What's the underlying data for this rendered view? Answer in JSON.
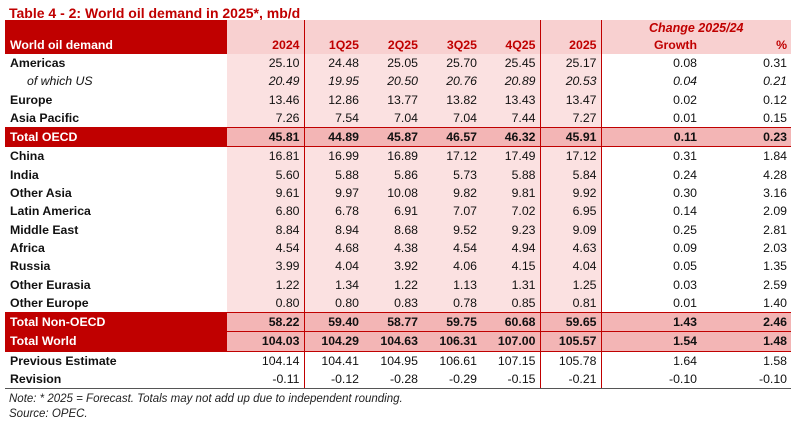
{
  "title": "Table 4 - 2: World oil demand in 2025*, mb/d",
  "header": {
    "change_label": "Change 2025/24",
    "row_label": "World oil demand",
    "columns": [
      "2024",
      "1Q25",
      "2Q25",
      "3Q25",
      "4Q25",
      "2025",
      "Growth",
      "%"
    ]
  },
  "rows": [
    {
      "label": "Americas",
      "values": [
        "25.10",
        "24.48",
        "25.05",
        "25.70",
        "25.45",
        "25.17",
        "0.08",
        "0.31"
      ],
      "style": "normal"
    },
    {
      "label": "of which US",
      "values": [
        "20.49",
        "19.95",
        "20.50",
        "20.76",
        "20.89",
        "20.53",
        "0.04",
        "0.21"
      ],
      "style": "sub"
    },
    {
      "label": "Europe",
      "values": [
        "13.46",
        "12.86",
        "13.77",
        "13.82",
        "13.43",
        "13.47",
        "0.02",
        "0.12"
      ],
      "style": "normal"
    },
    {
      "label": "Asia Pacific",
      "values": [
        "7.26",
        "7.54",
        "7.04",
        "7.04",
        "7.44",
        "7.27",
        "0.01",
        "0.15"
      ],
      "style": "normal"
    },
    {
      "label": "Total OECD",
      "values": [
        "45.81",
        "44.89",
        "45.87",
        "46.57",
        "46.32",
        "45.91",
        "0.11",
        "0.23"
      ],
      "style": "total"
    },
    {
      "label": "China",
      "values": [
        "16.81",
        "16.99",
        "16.89",
        "17.12",
        "17.49",
        "17.12",
        "0.31",
        "1.84"
      ],
      "style": "normal"
    },
    {
      "label": "India",
      "values": [
        "5.60",
        "5.88",
        "5.86",
        "5.73",
        "5.88",
        "5.84",
        "0.24",
        "4.28"
      ],
      "style": "normal"
    },
    {
      "label": "Other Asia",
      "values": [
        "9.61",
        "9.97",
        "10.08",
        "9.82",
        "9.81",
        "9.92",
        "0.30",
        "3.16"
      ],
      "style": "normal"
    },
    {
      "label": "Latin America",
      "values": [
        "6.80",
        "6.78",
        "6.91",
        "7.07",
        "7.02",
        "6.95",
        "0.14",
        "2.09"
      ],
      "style": "normal"
    },
    {
      "label": "Middle East",
      "values": [
        "8.84",
        "8.94",
        "8.68",
        "9.52",
        "9.23",
        "9.09",
        "0.25",
        "2.81"
      ],
      "style": "normal"
    },
    {
      "label": "Africa",
      "values": [
        "4.54",
        "4.68",
        "4.38",
        "4.54",
        "4.94",
        "4.63",
        "0.09",
        "2.03"
      ],
      "style": "normal"
    },
    {
      "label": "Russia",
      "values": [
        "3.99",
        "4.04",
        "3.92",
        "4.06",
        "4.15",
        "4.04",
        "0.05",
        "1.35"
      ],
      "style": "normal"
    },
    {
      "label": "Other Eurasia",
      "values": [
        "1.22",
        "1.34",
        "1.22",
        "1.13",
        "1.31",
        "1.25",
        "0.03",
        "2.59"
      ],
      "style": "normal"
    },
    {
      "label": "Other Europe",
      "values": [
        "0.80",
        "0.80",
        "0.83",
        "0.78",
        "0.85",
        "0.81",
        "0.01",
        "1.40"
      ],
      "style": "normal"
    },
    {
      "label": "Total Non-OECD",
      "values": [
        "58.22",
        "59.40",
        "58.77",
        "59.75",
        "60.68",
        "59.65",
        "1.43",
        "2.46"
      ],
      "style": "total"
    },
    {
      "label": "Total World",
      "values": [
        "104.03",
        "104.29",
        "104.63",
        "106.31",
        "107.00",
        "105.57",
        "1.54",
        "1.48"
      ],
      "style": "total"
    },
    {
      "label": "Previous Estimate",
      "values": [
        "104.14",
        "104.41",
        "104.95",
        "106.61",
        "107.15",
        "105.78",
        "1.64",
        "1.58"
      ],
      "style": "after"
    },
    {
      "label": "Revision",
      "values": [
        "-0.11",
        "-0.12",
        "-0.28",
        "-0.29",
        "-0.15",
        "-0.21",
        "-0.10",
        "-0.10"
      ],
      "style": "last"
    }
  ],
  "notes": {
    "note": "Note: * 2025 = Forecast. Totals may not add up due to independent rounding.",
    "source": "Source: OPEC."
  },
  "colors": {
    "accent_red": "#c00000",
    "header_pink": "#f8d0d0",
    "body_pink": "#fbe1e1",
    "total_pink": "#f3b5b5"
  }
}
